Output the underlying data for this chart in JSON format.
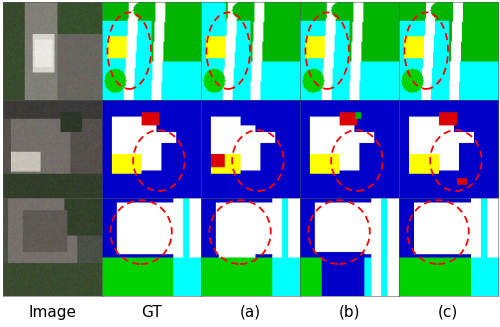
{
  "labels": [
    "Image",
    "GT",
    "(a)",
    "(b)",
    "(c)"
  ],
  "label_fontsize": 11,
  "fig_width": 5.0,
  "fig_height": 3.27,
  "dpi": 100,
  "background": "#ffffff"
}
